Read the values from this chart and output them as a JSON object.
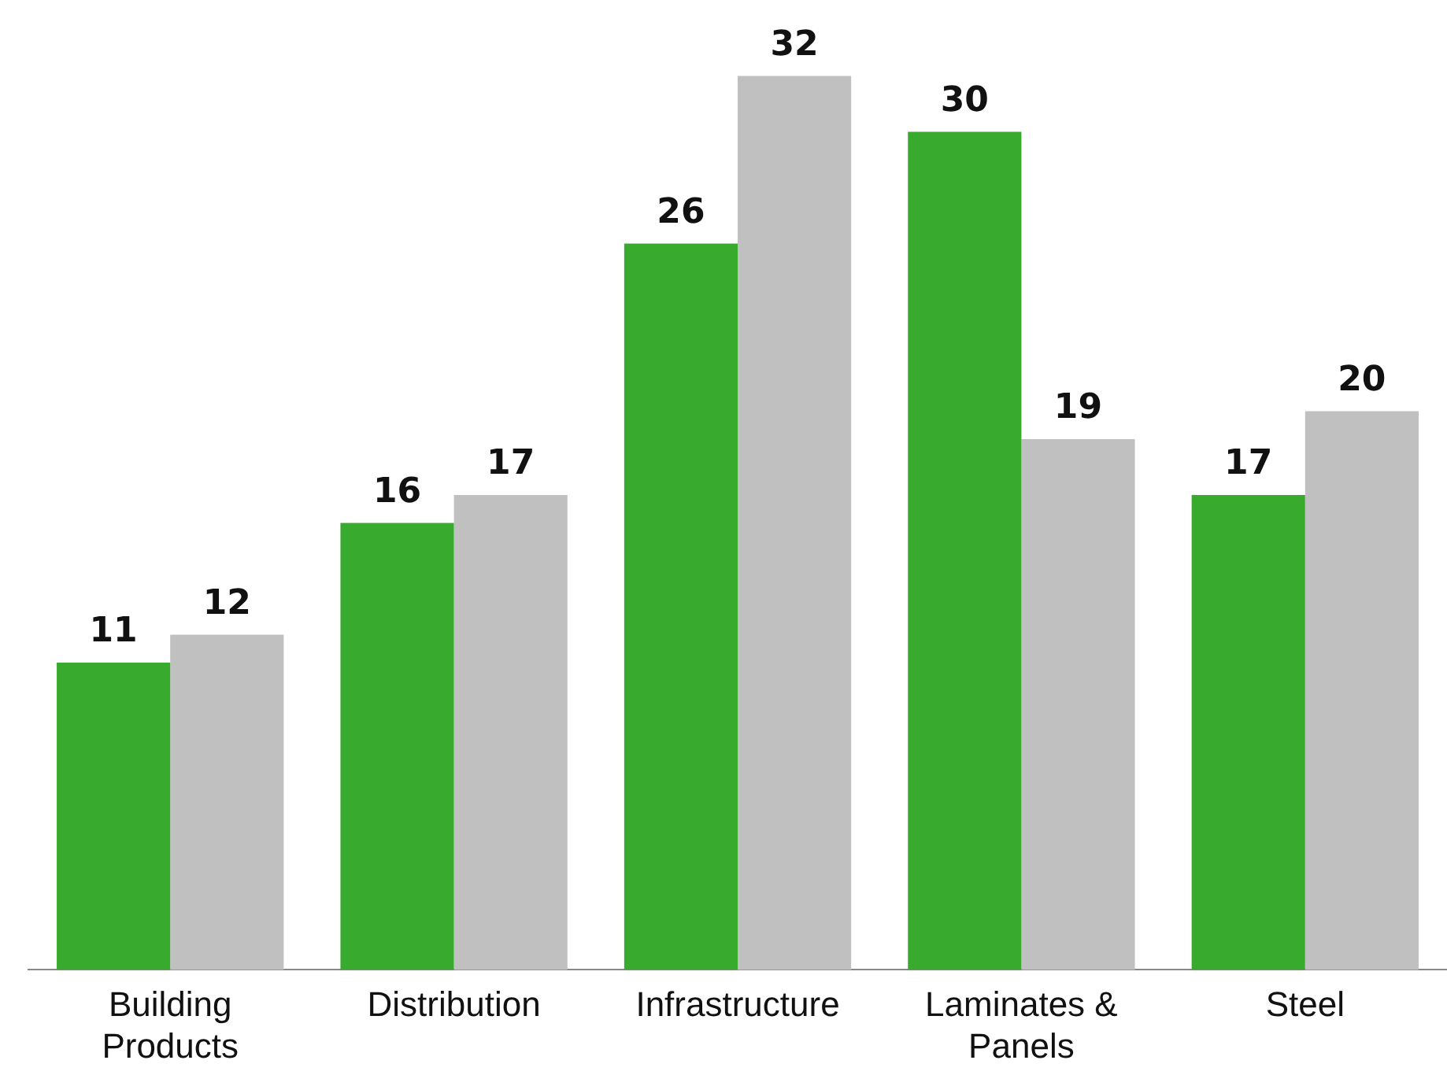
{
  "chart_data": {
    "type": "bar",
    "categories": [
      "Building Products",
      "Distribution",
      "Infrastructure",
      "Laminates & Panels",
      "Steel"
    ],
    "series": [
      {
        "color": "#38ab2e",
        "values": [
          11,
          16,
          26,
          30,
          17
        ]
      },
      {
        "color": "#c0c0c0",
        "values": [
          12,
          17,
          32,
          19,
          20
        ]
      }
    ],
    "data_labels": true,
    "grid": false,
    "legend": false
  }
}
